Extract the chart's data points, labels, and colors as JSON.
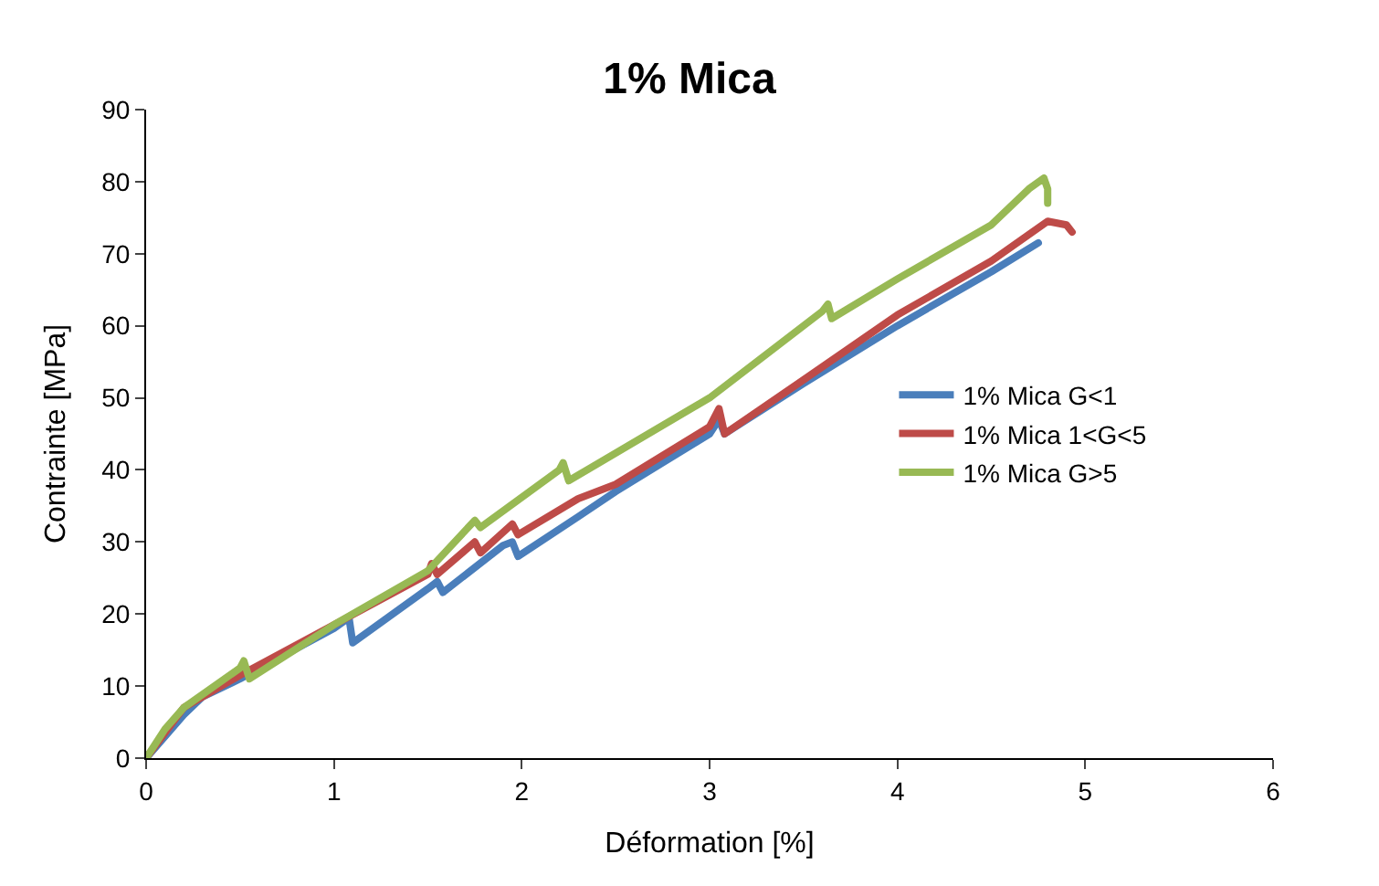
{
  "chart_data": {
    "type": "line",
    "title": "1% Mica",
    "xlabel": "Déformation [%]",
    "ylabel": "Contrainte [MPa]",
    "xlim": [
      0,
      6
    ],
    "xticks": [
      0,
      1,
      2,
      3,
      4,
      5,
      6
    ],
    "ylim": [
      0,
      90
    ],
    "yticks": [
      0,
      10,
      20,
      30,
      40,
      50,
      60,
      70,
      80,
      90
    ],
    "legend": "right",
    "marker": "none",
    "line_style": "solid",
    "series": [
      {
        "name": "1% Mica G<1",
        "color": "#4a7ebb",
        "x": [
          0,
          0.1,
          0.2,
          0.3,
          0.5,
          1.0,
          1.08,
          1.1,
          1.5,
          1.55,
          1.58,
          1.9,
          1.95,
          1.98,
          2.3,
          2.5,
          3.0,
          3.05,
          3.08,
          3.5,
          4.0,
          4.5,
          4.75
        ],
        "values": [
          0,
          3,
          6,
          8.5,
          11,
          18,
          19.5,
          16,
          23.5,
          24.5,
          23,
          29.5,
          30,
          28,
          33.5,
          37,
          45,
          47,
          45,
          52,
          60,
          67.5,
          71.5
        ]
      },
      {
        "name": "1% Mica 1<G<5",
        "color": "#be4b48",
        "x": [
          0,
          0.2,
          0.5,
          1.0,
          1.5,
          1.52,
          1.55,
          1.75,
          1.78,
          1.95,
          1.98,
          2.3,
          2.5,
          3.0,
          3.05,
          3.08,
          3.5,
          4.0,
          4.5,
          4.8,
          4.9,
          4.93
        ],
        "values": [
          0,
          7,
          11.5,
          18.5,
          25.5,
          27,
          25.5,
          30,
          28.5,
          32.5,
          31,
          36,
          38,
          46,
          48.5,
          45,
          52.5,
          61.5,
          69,
          74.5,
          74,
          73
        ]
      },
      {
        "name": "1% Mica G>5",
        "color": "#98b954",
        "x": [
          0,
          0.1,
          0.2,
          0.5,
          0.52,
          0.55,
          1.0,
          1.5,
          1.75,
          1.78,
          2.2,
          2.22,
          2.25,
          3.0,
          3.6,
          3.63,
          3.65,
          4.0,
          4.5,
          4.7,
          4.78,
          4.8,
          4.8
        ],
        "values": [
          0,
          4,
          7,
          12.5,
          13.5,
          11,
          18.5,
          26,
          33,
          32,
          40,
          41,
          38.5,
          50,
          62,
          63,
          61,
          66.5,
          74,
          79,
          80.5,
          79,
          77
        ]
      }
    ]
  }
}
